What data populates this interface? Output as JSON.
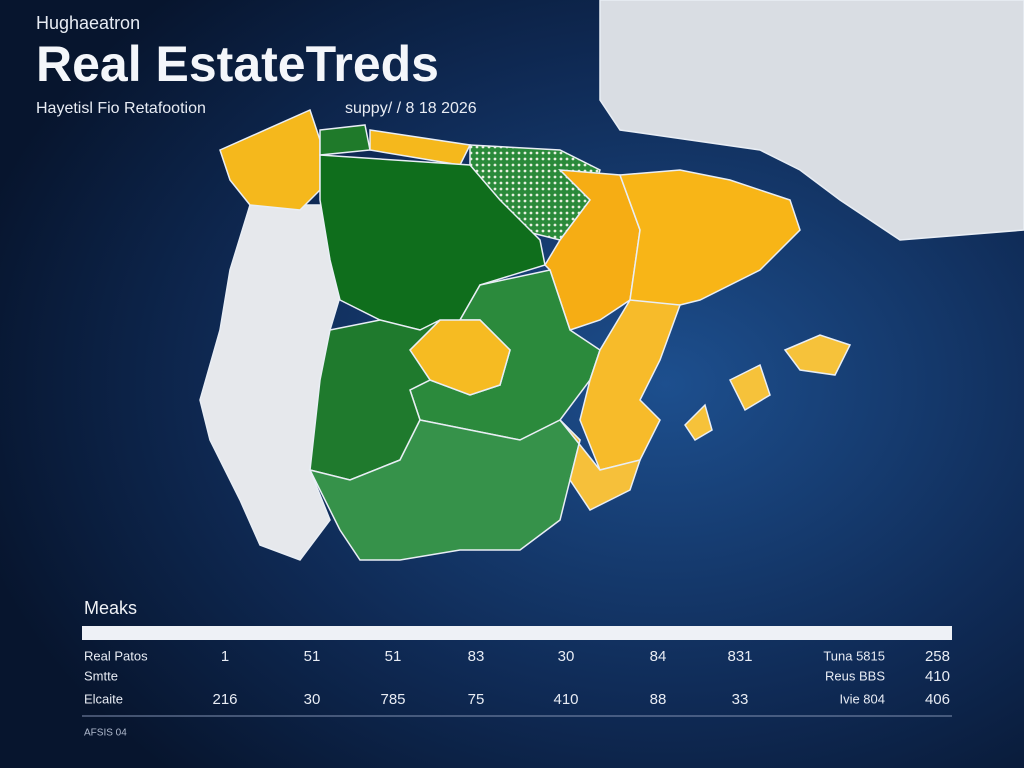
{
  "header": {
    "kicker": "Hughaeatron",
    "title": "Real EstateTreds",
    "subtitle": "Hayetisl Fio Retafootion",
    "date": "suppy/ / 8 18 2026"
  },
  "table": {
    "title": "Meaks",
    "rows": [
      [
        "Real Patos",
        "1",
        "51",
        "51",
        "83",
        "30",
        "84",
        "831",
        "Tuna 5815",
        "258"
      ],
      [
        "Smtte",
        null,
        null,
        null,
        null,
        null,
        null,
        null,
        "Reus BBS",
        "410"
      ],
      [
        "Elcaite",
        "216",
        "30",
        "785",
        "75",
        "410",
        "88",
        "33",
        "Ivie 804",
        "406"
      ]
    ]
  },
  "footer": {
    "note": "AFSIS 04"
  }
}
